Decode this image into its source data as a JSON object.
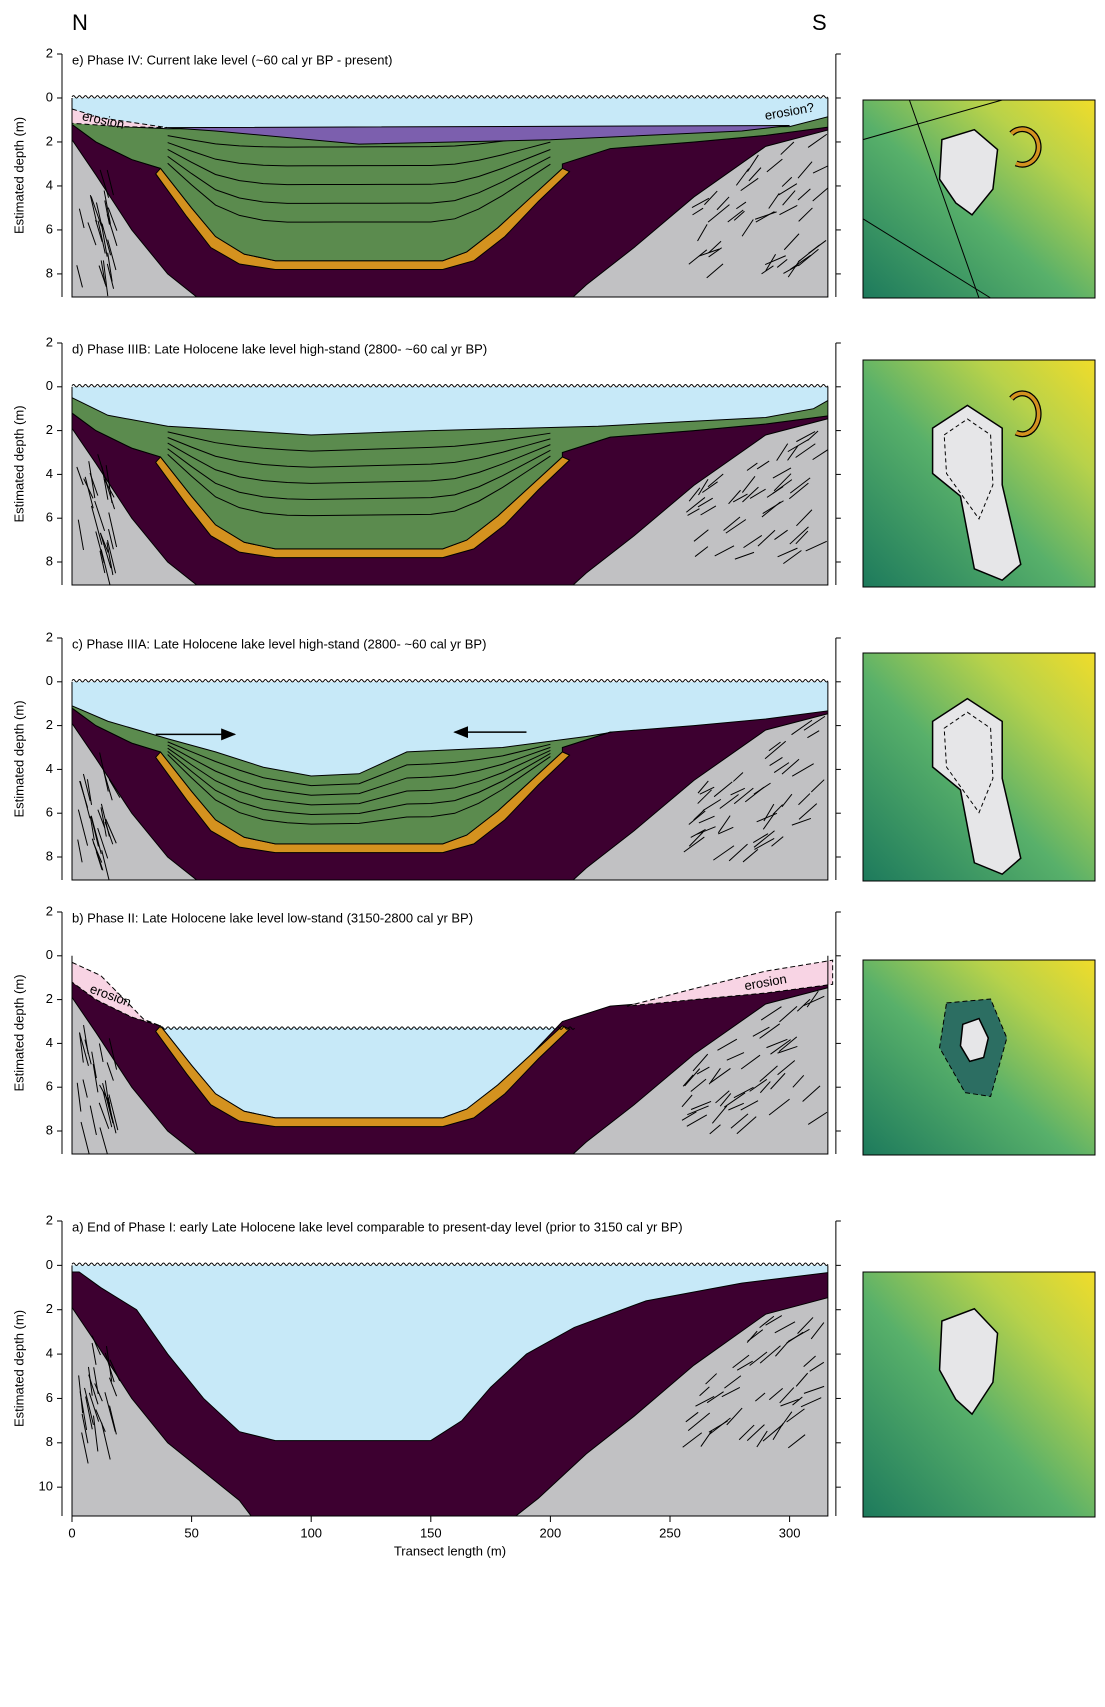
{
  "compass": {
    "north": "N",
    "south": "S"
  },
  "panels": [
    {
      "title": "e) Phase IV: Current lake level (~60 cal yr BP - present)",
      "y_label": "Estimated depth (m)",
      "ylim": [
        -2,
        9.05
      ],
      "yticks": [
        {
          "value": -2,
          "label": "2"
        },
        0,
        2,
        4,
        6,
        8
      ],
      "annotations": [
        "erosion",
        "erosion?"
      ]
    },
    {
      "title": "d) Phase IIIB: Late Holocene lake level high-stand (2800- ~60 cal yr BP)",
      "y_label": "Estimated depth (m)",
      "ylim": [
        -2,
        9.05
      ],
      "yticks": [
        {
          "value": -2,
          "label": "2"
        },
        0,
        2,
        4,
        6,
        8
      ]
    },
    {
      "title": "c) Phase IIIA: Late Holocene lake level high-stand (2800- ~60 cal yr BP)",
      "y_label": "Estimated depth (m)",
      "ylim": [
        -2,
        9.05
      ],
      "yticks": [
        {
          "value": -2,
          "label": "2"
        },
        0,
        2,
        4,
        6,
        8
      ]
    },
    {
      "title": "b) Phase II: Late Holocene lake level low-stand (3150-2800 cal yr BP)",
      "y_label": "Estimated depth (m)",
      "ylim": [
        -2,
        9.05
      ],
      "yticks": [
        {
          "value": -2,
          "label": "2"
        },
        0,
        2,
        4,
        6,
        8
      ],
      "annotations": [
        "erosion",
        "erosion"
      ]
    },
    {
      "title": "a) End of Phase I: early Late Holocene lake level comparable to present-day level (prior to 3150 cal yr BP)",
      "y_label": "Estimated depth (m)",
      "ylim": [
        -2,
        11.3
      ],
      "yticks": [
        {
          "value": -2,
          "label": "2"
        },
        0,
        2,
        4,
        6,
        8,
        10
      ]
    }
  ],
  "x_axis": {
    "label": "Transect length (m)",
    "xlim": [
      0,
      316
    ],
    "xticks": [
      0,
      50,
      100,
      150,
      200,
      250,
      300
    ]
  }
}
